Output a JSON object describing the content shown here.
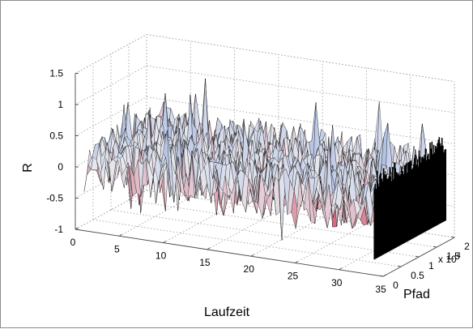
{
  "chart_data": {
    "type": "surface",
    "title": "",
    "zlabel": "R",
    "xlabel": "Laufzeit",
    "ylabel": "Pfad",
    "y_exponent_label": "x 10",
    "y_exponent_power": "4",
    "xlim": [
      0,
      35
    ],
    "ylim": [
      0,
      2
    ],
    "zlim": [
      -1,
      1.5
    ],
    "x_ticks": [
      "0",
      "5",
      "10",
      "15",
      "20",
      "25",
      "30",
      "35"
    ],
    "x_tick_values": [
      0,
      5,
      10,
      15,
      20,
      25,
      30,
      35
    ],
    "y_ticks": [
      "0",
      "0.5",
      "1",
      "1.5",
      "2"
    ],
    "y_tick_values": [
      0,
      0.5,
      1,
      1.5,
      2
    ],
    "z_ticks": [
      "-1",
      "-0.5",
      "0",
      "0.5",
      "1",
      "1.5"
    ],
    "z_tick_values": [
      -1,
      -0.5,
      0,
      0.5,
      1,
      1.5
    ],
    "data_x_range": [
      1,
      34
    ],
    "data_y_range": [
      0,
      2
    ],
    "surface_mean": 0.05,
    "surface_value_range": [
      -0.7,
      1.6
    ],
    "grid": true,
    "colors": {
      "low": "#c8193a",
      "mid": "#e8e8ee",
      "high": "#8ea8dc",
      "edge": "#000000"
    }
  }
}
